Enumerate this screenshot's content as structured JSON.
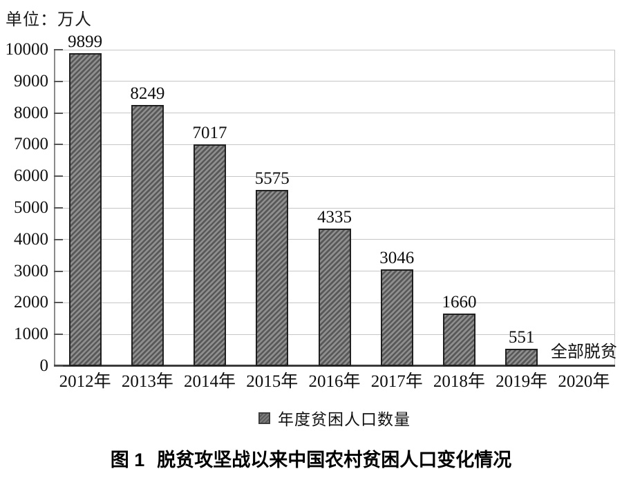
{
  "unit_label": "单位：万人",
  "legend": {
    "label": "年度贫困人口数量"
  },
  "caption": {
    "prefix": "图 1",
    "text": "脱贫攻坚战以来中国农村贫困人口变化情况"
  },
  "colors": {
    "bar_fill": "#8f8f8f",
    "bar_hatch": "#585858",
    "bar_border": "#1f1f1f",
    "gridline": "#c6c6c6",
    "axis": "#3a3a3a"
  },
  "chart_data": {
    "type": "bar",
    "title": "图 1 脱贫攻坚战以来中国农村贫困人口变化情况",
    "unit": "单位：万人",
    "categories": [
      "2012年",
      "2013年",
      "2014年",
      "2015年",
      "2016年",
      "2017年",
      "2018年",
      "2019年",
      "2020年"
    ],
    "values": [
      9899,
      8249,
      7017,
      5575,
      4335,
      3046,
      1660,
      551,
      null
    ],
    "bar_labels": [
      "9899",
      "8249",
      "7017",
      "5575",
      "4335",
      "3046",
      "1660",
      "551",
      ""
    ],
    "ylim": [
      0,
      10000
    ],
    "ytick_step": 1000,
    "ytick_labels": [
      "0",
      "1000",
      "2000",
      "3000",
      "4000",
      "5000",
      "6000",
      "7000",
      "8000",
      "9000",
      "10000"
    ],
    "grid": true,
    "legend": [
      "年度贫困人口数量"
    ],
    "legend_position": "bottom",
    "annotations": [
      {
        "text": "全部脱贫",
        "x": "2020年",
        "y": 0
      }
    ]
  }
}
